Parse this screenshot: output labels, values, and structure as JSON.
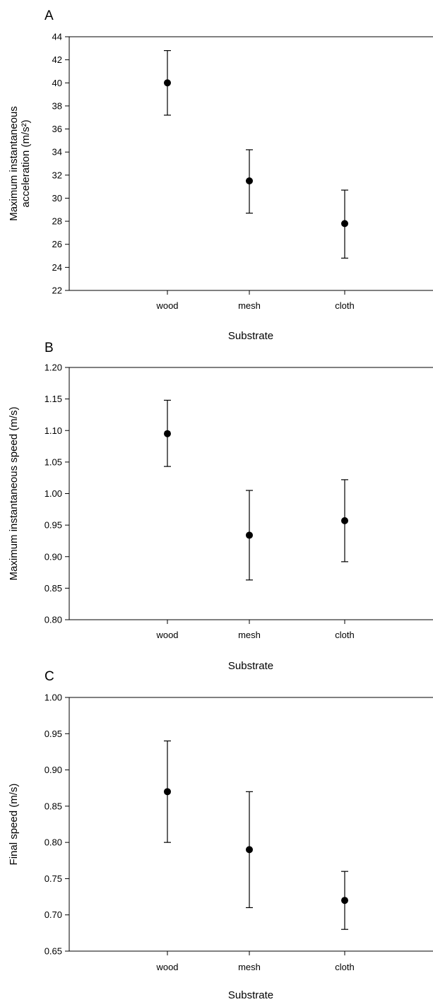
{
  "chart_data": [
    {
      "type": "scatter",
      "panel_label": "A",
      "categories": [
        "wood",
        "mesh",
        "cloth"
      ],
      "values": [
        40.0,
        31.5,
        27.8
      ],
      "error_low": [
        37.2,
        28.7,
        24.8
      ],
      "error_high": [
        42.8,
        34.2,
        30.7
      ],
      "xlabel": "Substrate",
      "ylabel_lines": [
        "Maximum instantaneous",
        "acceleration (m/s²)"
      ],
      "ylim": [
        22,
        44
      ],
      "yticks": [
        "22",
        "24",
        "26",
        "28",
        "30",
        "32",
        "34",
        "36",
        "38",
        "40",
        "42",
        "44"
      ],
      "grid": false
    },
    {
      "type": "scatter",
      "panel_label": "B",
      "categories": [
        "wood",
        "mesh",
        "cloth"
      ],
      "values": [
        1.095,
        0.934,
        0.957
      ],
      "error_low": [
        1.043,
        0.863,
        0.892
      ],
      "error_high": [
        1.148,
        1.005,
        1.022
      ],
      "xlabel": "Substrate",
      "ylabel_lines": [
        "Maximum instantaneous speed (m/s)"
      ],
      "ylim": [
        0.8,
        1.2
      ],
      "yticks": [
        "0.80",
        "0.85",
        "0.90",
        "0.95",
        "1.00",
        "1.05",
        "1.10",
        "1.15",
        "1.20"
      ],
      "grid": false
    },
    {
      "type": "scatter",
      "panel_label": "C",
      "categories": [
        "wood",
        "mesh",
        "cloth"
      ],
      "values": [
        0.87,
        0.79,
        0.72
      ],
      "error_low": [
        0.8,
        0.71,
        0.68
      ],
      "error_high": [
        0.94,
        0.87,
        0.76
      ],
      "xlabel": "Substrate",
      "ylabel_lines": [
        "Final speed (m/s)"
      ],
      "ylim": [
        0.65,
        1.0
      ],
      "yticks": [
        "0.65",
        "0.70",
        "0.75",
        "0.80",
        "0.85",
        "0.90",
        "0.95",
        "1.00"
      ],
      "grid": false
    }
  ]
}
